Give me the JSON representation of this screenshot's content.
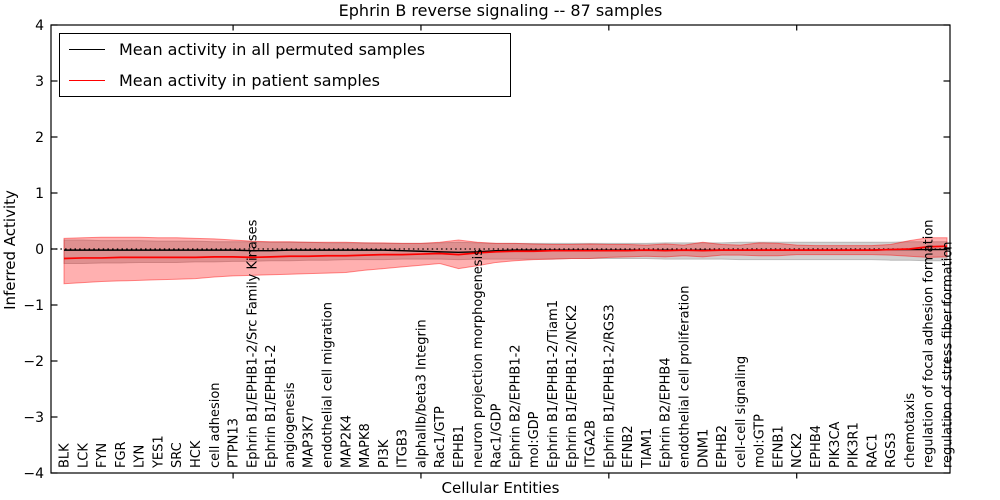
{
  "title": "Ephrin B reverse signaling -- 87 samples",
  "axes": {
    "x_label": "Cellular Entities",
    "y_label": "Inferred Activity",
    "y_ticks": [
      4,
      3,
      2,
      1,
      0,
      -1,
      -2,
      -3,
      -4
    ],
    "y_min": -4,
    "y_max": 4
  },
  "legend": {
    "items": [
      {
        "label": "Mean activity in all permuted samples",
        "color": "#000000"
      },
      {
        "label": "Mean activity in patient samples",
        "color": "#ff0000"
      }
    ]
  },
  "colors": {
    "permuted_line": "#000000",
    "patient_line": "#ff0000",
    "patient_band": "#ff0000",
    "permuted_band": "#999999",
    "zero_line": "#000000",
    "spine": "#000000"
  },
  "chart_data": {
    "type": "line",
    "title": "Ephrin B reverse signaling -- 87 samples",
    "xlabel": "Cellular Entities",
    "ylabel": "Inferred Activity",
    "ylim": [
      -4,
      4
    ],
    "grid": false,
    "legend_position": "upper left",
    "zero_reference_line": 0,
    "categories": [
      "BLK",
      "LCK",
      "FYN",
      "FGR",
      "LYN",
      "YES1",
      "SRC",
      "HCK",
      "cell adhesion",
      "PTPN13",
      "Ephrin B1/EPHB1-2/Src Family Kinases",
      "Ephrin B1/EPHB1-2",
      "angiogenesis",
      "MAP3K7",
      "endothelial cell migration",
      "MAP2K4",
      "MAPK8",
      "PI3K",
      "ITGB3",
      "alphaIIb/beta3 Integrin",
      "Rac1/GTP",
      "EPHB1",
      "neuron projection morphogenesis",
      "Rac1/GDP",
      "Ephrin B2/EPHB1-2",
      "mol:GDP",
      "Ephrin B1/EPHB1-2/Tiam1",
      "Ephrin B1/EPHB1-2/NCK2",
      "ITGA2B",
      "Ephrin B1/EPHB1-2/RGS3",
      "EFNB2",
      "TIAM1",
      "Ephrin B2/EPHB4",
      "endothelial cell proliferation",
      "DNM1",
      "EPHB2",
      "cell-cell signaling",
      "mol:GTP",
      "EFNB1",
      "NCK2",
      "EPHB4",
      "PIK3CA",
      "PIK3R1",
      "RAC1",
      "RGS3",
      "chemotaxis",
      "regulation of focal adhesion formation",
      "regulation of stress fiber formation"
    ],
    "series": [
      {
        "name": "Mean activity in all permuted samples",
        "color": "#000000",
        "values": [
          -0.02,
          -0.02,
          -0.02,
          -0.02,
          -0.02,
          -0.02,
          -0.02,
          -0.02,
          -0.02,
          -0.02,
          -0.03,
          -0.03,
          -0.02,
          -0.02,
          -0.02,
          -0.02,
          -0.02,
          -0.02,
          -0.03,
          -0.04,
          -0.05,
          -0.06,
          -0.05,
          -0.03,
          -0.02,
          -0.02,
          -0.02,
          -0.02,
          -0.02,
          -0.02,
          -0.02,
          -0.02,
          -0.02,
          -0.02,
          -0.02,
          -0.02,
          -0.02,
          -0.02,
          -0.02,
          -0.02,
          -0.02,
          -0.02,
          -0.02,
          -0.02,
          -0.01,
          -0.01,
          -0.01,
          -0.01
        ]
      },
      {
        "name": "Mean activity in patient samples",
        "color": "#ff0000",
        "values": [
          -0.17,
          -0.16,
          -0.16,
          -0.15,
          -0.15,
          -0.15,
          -0.15,
          -0.15,
          -0.14,
          -0.14,
          -0.15,
          -0.14,
          -0.13,
          -0.13,
          -0.12,
          -0.12,
          -0.11,
          -0.1,
          -0.1,
          -0.09,
          -0.08,
          -0.1,
          -0.07,
          -0.05,
          -0.04,
          -0.04,
          -0.03,
          -0.03,
          -0.03,
          -0.03,
          -0.03,
          -0.02,
          -0.03,
          -0.02,
          -0.03,
          -0.02,
          -0.02,
          -0.02,
          -0.02,
          -0.02,
          -0.02,
          -0.02,
          -0.02,
          -0.02,
          -0.01,
          0.0,
          0.04,
          0.05
        ]
      }
    ],
    "bands": [
      {
        "name": "permuted-samples-band",
        "color": "#999999",
        "opacity": 0.45,
        "upper": [
          0.16,
          0.16,
          0.15,
          0.15,
          0.15,
          0.14,
          0.14,
          0.14,
          0.13,
          0.13,
          0.13,
          0.12,
          0.12,
          0.12,
          0.11,
          0.11,
          0.11,
          0.1,
          0.1,
          0.1,
          0.11,
          0.12,
          0.11,
          0.1,
          0.1,
          0.1,
          0.1,
          0.1,
          0.1,
          0.1,
          0.1,
          0.1,
          0.11,
          0.11,
          0.11,
          0.11,
          0.12,
          0.12,
          0.12,
          0.12,
          0.12,
          0.12,
          0.12,
          0.12,
          0.12,
          0.13,
          0.13,
          0.13
        ],
        "lower": [
          -0.26,
          -0.26,
          -0.25,
          -0.25,
          -0.24,
          -0.24,
          -0.24,
          -0.23,
          -0.23,
          -0.22,
          -0.22,
          -0.21,
          -0.21,
          -0.2,
          -0.2,
          -0.19,
          -0.19,
          -0.19,
          -0.18,
          -0.18,
          -0.18,
          -0.19,
          -0.18,
          -0.18,
          -0.18,
          -0.18,
          -0.18,
          -0.17,
          -0.17,
          -0.17,
          -0.17,
          -0.17,
          -0.18,
          -0.18,
          -0.18,
          -0.18,
          -0.19,
          -0.19,
          -0.19,
          -0.19,
          -0.19,
          -0.19,
          -0.19,
          -0.19,
          -0.2,
          -0.2,
          -0.21,
          -0.21
        ]
      },
      {
        "name": "patient-samples-band",
        "color": "#ff0000",
        "opacity": 0.31,
        "upper": [
          0.19,
          0.2,
          0.21,
          0.21,
          0.21,
          0.2,
          0.2,
          0.19,
          0.18,
          0.16,
          0.14,
          0.13,
          0.13,
          0.12,
          0.12,
          0.12,
          0.11,
          0.11,
          0.1,
          0.1,
          0.12,
          0.16,
          0.12,
          0.1,
          0.1,
          0.09,
          0.08,
          0.08,
          0.09,
          0.08,
          0.08,
          0.07,
          0.09,
          0.07,
          0.12,
          0.08,
          0.07,
          0.11,
          0.1,
          0.07,
          0.06,
          0.06,
          0.06,
          0.06,
          0.08,
          0.15,
          0.2,
          0.2
        ],
        "lower": [
          -0.62,
          -0.6,
          -0.58,
          -0.57,
          -0.56,
          -0.55,
          -0.54,
          -0.53,
          -0.5,
          -0.48,
          -0.47,
          -0.46,
          -0.45,
          -0.44,
          -0.43,
          -0.42,
          -0.38,
          -0.35,
          -0.32,
          -0.29,
          -0.26,
          -0.35,
          -0.3,
          -0.24,
          -0.21,
          -0.19,
          -0.18,
          -0.17,
          -0.17,
          -0.15,
          -0.14,
          -0.13,
          -0.14,
          -0.12,
          -0.14,
          -0.11,
          -0.11,
          -0.12,
          -0.12,
          -0.1,
          -0.1,
          -0.1,
          -0.1,
          -0.1,
          -0.11,
          -0.13,
          -0.15,
          -0.14
        ]
      }
    ],
    "x_major_tick_indices": [
      9,
      19,
      29,
      39
    ]
  }
}
